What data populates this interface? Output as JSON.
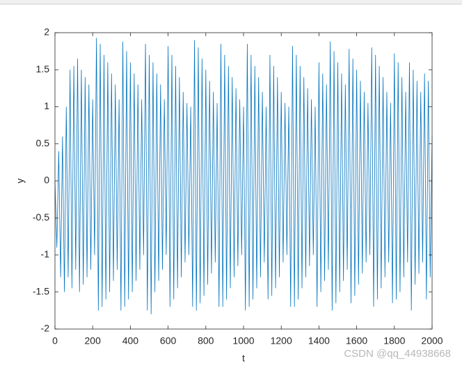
{
  "chart_data": {
    "type": "line",
    "xlabel": "t",
    "ylabel": "y",
    "watermark": "CSDN @qq_44938668",
    "xlim": [
      0,
      2000
    ],
    "ylim": [
      -2,
      2
    ],
    "xticks": [
      0,
      200,
      400,
      600,
      800,
      1000,
      1200,
      1400,
      1600,
      1800,
      2000
    ],
    "yticks": [
      -2,
      -1.5,
      -1,
      -0.5,
      0,
      0.5,
      1,
      1.5,
      2
    ],
    "color": "#0072bd",
    "x": [
      0,
      10,
      20,
      30,
      40,
      50,
      60,
      70,
      80,
      90,
      100,
      110,
      120,
      130,
      140,
      150,
      160,
      170,
      180,
      190,
      200,
      210,
      220,
      230,
      240,
      250,
      260,
      270,
      280,
      290,
      300,
      310,
      320,
      330,
      340,
      350,
      360,
      370,
      380,
      390,
      400,
      410,
      420,
      430,
      440,
      450,
      460,
      470,
      480,
      490,
      500,
      510,
      520,
      530,
      540,
      550,
      560,
      570,
      580,
      590,
      600,
      610,
      620,
      630,
      640,
      650,
      660,
      670,
      680,
      690,
      700,
      710,
      720,
      730,
      740,
      750,
      760,
      770,
      780,
      790,
      800,
      810,
      820,
      830,
      840,
      850,
      860,
      870,
      880,
      890,
      900,
      910,
      920,
      930,
      940,
      950,
      960,
      970,
      980,
      990,
      1000,
      1010,
      1020,
      1030,
      1040,
      1050,
      1060,
      1070,
      1080,
      1090,
      1100,
      1110,
      1120,
      1130,
      1140,
      1150,
      1160,
      1170,
      1180,
      1190,
      1200,
      1210,
      1220,
      1230,
      1240,
      1250,
      1260,
      1270,
      1280,
      1290,
      1300,
      1310,
      1320,
      1330,
      1340,
      1350,
      1360,
      1370,
      1380,
      1390,
      1400,
      1410,
      1420,
      1430,
      1440,
      1450,
      1460,
      1470,
      1480,
      1490,
      1500,
      1510,
      1520,
      1530,
      1540,
      1550,
      1560,
      1570,
      1580,
      1590,
      1600,
      1610,
      1620,
      1630,
      1640,
      1650,
      1660,
      1670,
      1680,
      1690,
      1700,
      1710,
      1720,
      1730,
      1740,
      1750,
      1760,
      1770,
      1780,
      1790,
      1800,
      1810,
      1820,
      1830,
      1840,
      1850,
      1860,
      1870,
      1880,
      1890,
      1900,
      1910,
      1920,
      1930,
      1940,
      1950,
      1960,
      1970,
      1980,
      1990,
      2000
    ],
    "values": [
      0,
      -0.9,
      0.4,
      -1.3,
      0.6,
      -1.5,
      1.0,
      -1.3,
      1.5,
      -1.45,
      1.55,
      -1.2,
      1.65,
      -1.5,
      1.5,
      -1.4,
      1.4,
      -1.3,
      1.3,
      -1.2,
      1.1,
      -1.0,
      1.93,
      -1.75,
      1.85,
      -1.7,
      1.7,
      -1.6,
      1.6,
      -1.5,
      1.45,
      -1.35,
      1.3,
      -1.2,
      1.1,
      -1.75,
      1.88,
      -1.7,
      1.75,
      -1.6,
      1.6,
      -1.5,
      1.45,
      -1.35,
      1.3,
      -1.2,
      1.1,
      -1.0,
      1.85,
      -1.75,
      1.7,
      -1.8,
      1.6,
      -1.5,
      1.45,
      -1.35,
      1.3,
      -1.2,
      1.1,
      -1.0,
      1.82,
      -1.7,
      1.7,
      -1.6,
      1.55,
      -1.45,
      1.4,
      -1.3,
      1.2,
      -1.1,
      1.05,
      -1.0,
      1.0,
      -1.7,
      1.9,
      -1.75,
      1.8,
      -1.65,
      1.65,
      -1.55,
      1.5,
      -1.4,
      1.35,
      -1.25,
      1.2,
      -1.1,
      1.05,
      -1.7,
      1.85,
      -1.7,
      1.7,
      -1.6,
      1.55,
      -1.45,
      1.4,
      -1.3,
      1.25,
      -1.15,
      1.1,
      -1.0,
      1.0,
      -1.75,
      1.85,
      -1.7,
      1.7,
      -1.6,
      1.55,
      -1.45,
      1.4,
      -1.3,
      1.2,
      -1.1,
      1.0,
      -1.6,
      1.7,
      -1.55,
      1.55,
      -1.45,
      1.4,
      -1.3,
      1.2,
      -1.1,
      1.05,
      -1.0,
      1.0,
      -1.7,
      1.82,
      -1.7,
      1.7,
      -1.6,
      1.55,
      -1.45,
      1.4,
      -1.3,
      1.25,
      -1.15,
      1.1,
      -1.0,
      1.0,
      -1.7,
      1.6,
      -1.5,
      1.45,
      -1.35,
      1.3,
      -1.2,
      1.88,
      -1.75,
      1.75,
      -1.65,
      1.6,
      -1.5,
      1.45,
      -1.35,
      1.3,
      -1.2,
      1.78,
      -1.65,
      1.65,
      -1.55,
      1.5,
      -1.4,
      1.35,
      -1.25,
      1.2,
      -1.1,
      1.05,
      -1.0,
      1.8,
      -1.7,
      1.7,
      -1.6,
      1.55,
      -1.45,
      1.4,
      -1.3,
      1.2,
      -1.1,
      1.05,
      -1.65,
      1.72,
      -1.6,
      1.6,
      -1.5,
      1.4,
      -1.3,
      1.2,
      -1.1,
      1.6,
      -1.75,
      1.5,
      -1.4,
      1.35,
      -1.25,
      1.2,
      -1.1,
      1.45,
      -1.6,
      1.35,
      -1.3,
      0.6
    ]
  }
}
